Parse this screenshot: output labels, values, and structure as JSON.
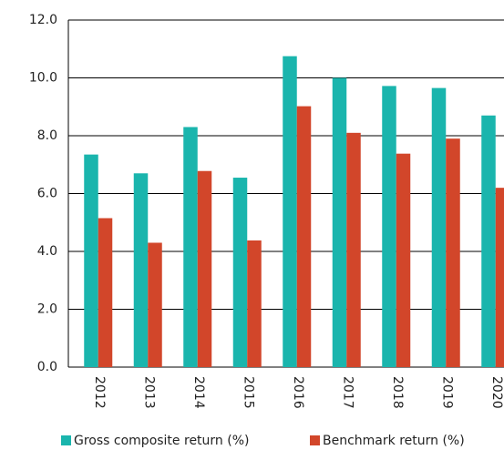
{
  "chart_data": {
    "type": "bar",
    "categories": [
      "2012",
      "2013",
      "2014",
      "2015",
      "2016",
      "2017",
      "2018",
      "2019",
      "2020"
    ],
    "series": [
      {
        "name": "Gross composite return (%)",
        "color": "#1ab5ad",
        "values": [
          7.35,
          6.7,
          8.3,
          6.55,
          10.75,
          10.0,
          9.72,
          9.65,
          8.7
        ]
      },
      {
        "name": "Benchmark return (%)",
        "color": "#d2462a",
        "values": [
          5.15,
          4.3,
          6.78,
          4.38,
          9.02,
          8.1,
          7.38,
          7.9,
          6.2
        ]
      }
    ],
    "ylim": [
      0,
      12
    ],
    "yticks": [
      {
        "value": 0,
        "label": "0.0"
      },
      {
        "value": 2,
        "label": "2.0"
      },
      {
        "value": 4,
        "label": "4.0"
      },
      {
        "value": 6,
        "label": "6.0"
      },
      {
        "value": 8,
        "label": "8.0"
      },
      {
        "value": 10,
        "label": "10.0"
      },
      {
        "value": 12,
        "label": "12.0"
      }
    ],
    "grid": true
  }
}
